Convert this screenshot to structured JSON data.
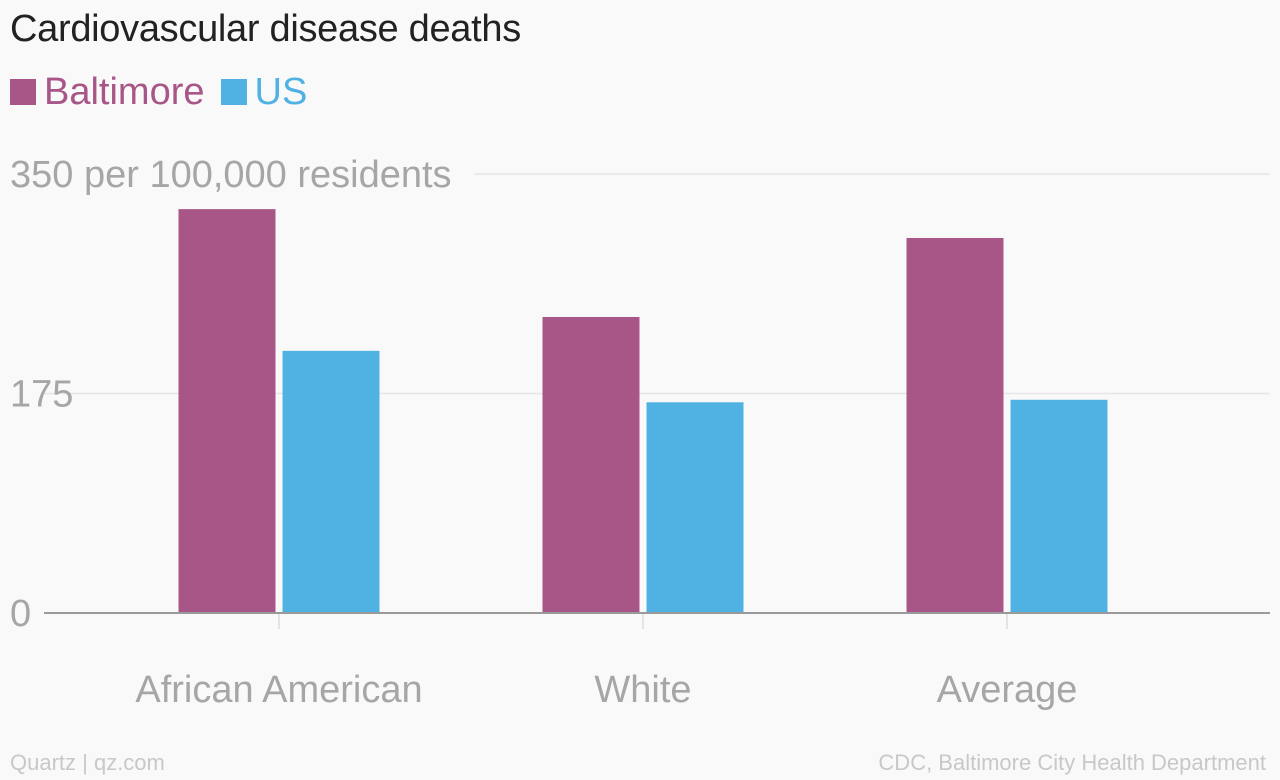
{
  "chart_data": {
    "type": "bar",
    "title": "Cardiovascular disease deaths",
    "ylabel": "per 100,000 residents",
    "categories": [
      "African American",
      "White",
      "Average"
    ],
    "series": [
      {
        "name": "Baltimore",
        "color": "#a85687",
        "values": [
          322,
          236,
          299
        ]
      },
      {
        "name": "US",
        "color": "#50b2e3",
        "values": [
          209,
          168,
          170
        ]
      }
    ],
    "ylim": [
      0,
      350
    ],
    "yticks": [
      {
        "value": 350,
        "label": "350 per 100,000 residents"
      },
      {
        "value": 175,
        "label": "175"
      },
      {
        "value": 0,
        "label": "0"
      }
    ],
    "grid": true,
    "legend": "top-left"
  },
  "footer": {
    "credit": "Quartz | qz.com",
    "source": "CDC, Baltimore City Health Department"
  }
}
